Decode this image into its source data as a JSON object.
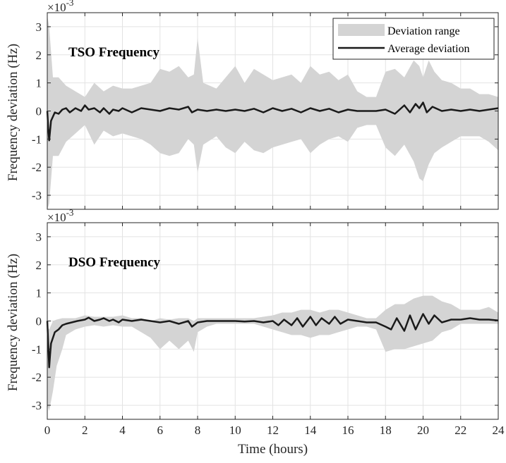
{
  "chart_data": [
    {
      "type": "area",
      "title": "TSO Frequency",
      "xlabel": "",
      "ylabel": "Frequency deviation (Hz)",
      "y_scale_label": "×10",
      "y_scale_exp": "-3",
      "xlim": [
        0,
        24
      ],
      "ylim": [
        -3.5,
        3.5
      ],
      "xticks": [],
      "yticks": [
        "-3",
        "-2",
        "-1",
        "0",
        "1",
        "2",
        "3"
      ],
      "ytick_values": [
        -3,
        -2,
        -1,
        0,
        1,
        2,
        3
      ],
      "xtick_values": [
        0,
        2,
        4,
        6,
        8,
        10,
        12,
        14,
        16,
        18,
        20,
        22,
        24
      ],
      "grid": true,
      "legend_position": "top-right",
      "legend": [
        "Deviation range",
        "Average deviation"
      ],
      "range_color": "#d4d4d4",
      "line_color": "#1a1a1a",
      "series": [
        {
          "name": "Deviation range",
          "x": [
            0,
            0.1,
            0.3,
            0.6,
            1.0,
            1.5,
            2.0,
            2.5,
            3.0,
            3.5,
            4.0,
            4.5,
            5.0,
            5.5,
            6.0,
            6.5,
            7.0,
            7.5,
            7.8,
            8.0,
            8.3,
            9.0,
            9.5,
            10.0,
            10.5,
            11.0,
            11.5,
            12.0,
            12.5,
            13.0,
            13.5,
            14.0,
            14.5,
            15.0,
            15.5,
            16.0,
            16.5,
            17.0,
            17.5,
            18.0,
            18.5,
            19.0,
            19.5,
            19.8,
            20.0,
            20.3,
            20.6,
            21.0,
            21.5,
            22.0,
            22.5,
            23.0,
            23.5,
            24.0
          ],
          "upper": [
            3.4,
            3.0,
            1.2,
            1.2,
            0.9,
            0.7,
            0.5,
            1.0,
            0.7,
            0.9,
            0.8,
            0.8,
            0.9,
            1.0,
            1.5,
            1.4,
            1.6,
            1.2,
            1.3,
            2.6,
            1.0,
            0.8,
            1.2,
            1.6,
            1.0,
            1.5,
            1.3,
            1.1,
            1.2,
            1.3,
            1.0,
            1.6,
            1.3,
            1.4,
            1.1,
            1.3,
            0.7,
            0.5,
            0.5,
            1.4,
            1.5,
            1.2,
            1.8,
            1.6,
            1.2,
            1.8,
            1.4,
            1.1,
            1.0,
            0.8,
            0.8,
            0.6,
            0.6,
            0.5
          ],
          "lower": [
            -3.5,
            -3.3,
            -1.6,
            -1.6,
            -1.1,
            -0.8,
            -0.5,
            -1.2,
            -0.7,
            -0.9,
            -0.8,
            -0.9,
            -1.0,
            -1.2,
            -1.5,
            -1.6,
            -1.5,
            -1.0,
            -1.2,
            -2.2,
            -1.2,
            -0.9,
            -1.3,
            -1.5,
            -1.1,
            -1.4,
            -1.5,
            -1.3,
            -1.2,
            -1.1,
            -1.0,
            -1.5,
            -1.2,
            -1.0,
            -0.9,
            -1.1,
            -0.6,
            -0.5,
            -0.5,
            -1.3,
            -1.6,
            -1.2,
            -1.8,
            -2.4,
            -2.5,
            -1.9,
            -1.5,
            -1.3,
            -1.1,
            -0.9,
            -0.9,
            -0.9,
            -1.1,
            -1.4
          ]
        },
        {
          "name": "Average deviation",
          "x": [
            0,
            0.05,
            0.1,
            0.15,
            0.2,
            0.3,
            0.4,
            0.6,
            0.8,
            1.0,
            1.2,
            1.5,
            1.8,
            2.0,
            2.2,
            2.5,
            2.8,
            3.0,
            3.3,
            3.5,
            3.8,
            4.0,
            4.5,
            5.0,
            5.5,
            6.0,
            6.5,
            7.0,
            7.5,
            7.7,
            8.0,
            8.5,
            9.0,
            9.5,
            10.0,
            10.5,
            11.0,
            11.5,
            12.0,
            12.5,
            13.0,
            13.5,
            14.0,
            14.5,
            15.0,
            15.5,
            16.0,
            16.5,
            17.0,
            17.5,
            18.0,
            18.5,
            19.0,
            19.3,
            19.6,
            19.8,
            20.0,
            20.2,
            20.5,
            21.0,
            21.5,
            22.0,
            22.5,
            23.0,
            23.5,
            24.0
          ],
          "values": [
            0,
            -0.6,
            -1.05,
            -0.7,
            -0.35,
            -0.2,
            -0.05,
            -0.1,
            0.05,
            0.1,
            -0.05,
            0.1,
            0.0,
            0.2,
            0.05,
            0.1,
            -0.05,
            0.1,
            -0.1,
            0.05,
            0.0,
            0.1,
            -0.05,
            0.1,
            0.05,
            0.0,
            0.1,
            0.05,
            0.15,
            -0.05,
            0.05,
            0.0,
            0.05,
            0.0,
            0.05,
            0.0,
            0.08,
            -0.05,
            0.1,
            0.0,
            0.08,
            -0.05,
            0.1,
            0.0,
            0.08,
            -0.05,
            0.05,
            0.0,
            0.0,
            0.0,
            0.05,
            -0.1,
            0.2,
            -0.05,
            0.25,
            0.1,
            0.3,
            -0.05,
            0.15,
            0.0,
            0.05,
            0.0,
            0.05,
            0.0,
            0.05,
            0.1
          ]
        }
      ]
    },
    {
      "type": "area",
      "title": "DSO Frequency",
      "xlabel": "Time (hours)",
      "ylabel": "Frequency deviation (Hz)",
      "y_scale_label": "×10",
      "y_scale_exp": "-3",
      "xlim": [
        0,
        24
      ],
      "ylim": [
        -3.5,
        3.5
      ],
      "xticks": [
        "0",
        "2",
        "4",
        "6",
        "8",
        "10",
        "12",
        "14",
        "16",
        "18",
        "20",
        "22",
        "24"
      ],
      "yticks": [
        "-3",
        "-2",
        "-1",
        "0",
        "1",
        "2",
        "3"
      ],
      "ytick_values": [
        -3,
        -2,
        -1,
        0,
        1,
        2,
        3
      ],
      "xtick_values": [
        0,
        2,
        4,
        6,
        8,
        10,
        12,
        14,
        16,
        18,
        20,
        22,
        24
      ],
      "grid": true,
      "range_color": "#d4d4d4",
      "line_color": "#1a1a1a",
      "series": [
        {
          "name": "Deviation range",
          "x": [
            0,
            0.1,
            0.3,
            0.5,
            0.8,
            1.0,
            1.5,
            2.0,
            2.5,
            3.0,
            3.5,
            4.0,
            4.5,
            5.0,
            5.5,
            6.0,
            6.5,
            7.0,
            7.5,
            7.8,
            8.0,
            8.5,
            9.0,
            10.0,
            11.0,
            12.0,
            12.5,
            13.0,
            13.5,
            14.0,
            14.5,
            15.0,
            15.5,
            16.0,
            16.5,
            17.0,
            17.5,
            18.0,
            18.5,
            19.0,
            19.5,
            20.0,
            20.5,
            21.0,
            21.5,
            22.0,
            22.5,
            23.0,
            23.5,
            24.0
          ],
          "upper": [
            -0.2,
            -0.3,
            0.0,
            0.05,
            0.1,
            0.1,
            0.1,
            0.2,
            0.15,
            0.15,
            0.15,
            0.2,
            0.1,
            0.1,
            0.0,
            0.1,
            0.05,
            0.1,
            0.1,
            0.0,
            0.1,
            0.1,
            0.1,
            0.1,
            0.1,
            0.2,
            0.3,
            0.3,
            0.4,
            0.4,
            0.3,
            0.4,
            0.4,
            0.3,
            0.2,
            0.1,
            0.1,
            0.4,
            0.6,
            0.6,
            0.8,
            0.9,
            0.9,
            0.7,
            0.6,
            0.4,
            0.4,
            0.4,
            0.5,
            0.3
          ],
          "lower": [
            -3.0,
            -3.2,
            -2.5,
            -1.6,
            -1.0,
            -0.5,
            -0.3,
            -0.2,
            -0.15,
            -0.2,
            -0.15,
            -0.2,
            -0.2,
            -0.4,
            -0.6,
            -1.0,
            -0.7,
            -1.0,
            -0.7,
            -1.1,
            -0.4,
            -0.2,
            -0.1,
            -0.1,
            -0.1,
            -0.3,
            -0.4,
            -0.5,
            -0.5,
            -0.6,
            -0.5,
            -0.5,
            -0.4,
            -0.3,
            -0.2,
            -0.2,
            -0.3,
            -1.1,
            -1.0,
            -1.0,
            -0.9,
            -0.8,
            -0.7,
            -0.4,
            -0.3,
            -0.1,
            -0.1,
            -0.1,
            -0.1,
            -0.1
          ]
        },
        {
          "name": "Average deviation",
          "x": [
            0,
            0.05,
            0.1,
            0.15,
            0.2,
            0.3,
            0.4,
            0.6,
            0.8,
            1.0,
            1.3,
            1.6,
            2.0,
            2.2,
            2.5,
            2.8,
            3.0,
            3.3,
            3.5,
            3.8,
            4.0,
            4.5,
            5.0,
            5.5,
            6.0,
            6.5,
            7.0,
            7.5,
            7.7,
            8.0,
            8.5,
            9.0,
            9.5,
            10.0,
            10.5,
            11.0,
            11.5,
            12.0,
            12.3,
            12.6,
            13.0,
            13.3,
            13.6,
            14.0,
            14.3,
            14.6,
            15.0,
            15.3,
            15.6,
            16.0,
            16.5,
            17.0,
            17.5,
            18.0,
            18.3,
            18.6,
            19.0,
            19.3,
            19.6,
            20.0,
            20.3,
            20.6,
            21.0,
            21.5,
            22.0,
            22.5,
            23.0,
            23.5,
            24.0
          ],
          "values": [
            0,
            -0.8,
            -1.65,
            -1.2,
            -0.8,
            -0.6,
            -0.4,
            -0.3,
            -0.15,
            -0.1,
            -0.05,
            0.0,
            0.05,
            0.12,
            0.0,
            0.05,
            0.1,
            0.0,
            0.05,
            -0.05,
            0.05,
            0.0,
            0.05,
            0.0,
            -0.05,
            0.0,
            -0.1,
            0.0,
            -0.2,
            -0.05,
            0.0,
            0.0,
            0.0,
            0.0,
            -0.02,
            0.0,
            -0.05,
            0.0,
            -0.15,
            0.05,
            -0.15,
            0.1,
            -0.2,
            0.15,
            -0.15,
            0.1,
            -0.1,
            0.15,
            -0.1,
            0.05,
            0.0,
            -0.05,
            -0.05,
            -0.2,
            -0.3,
            0.1,
            -0.35,
            0.2,
            -0.3,
            0.25,
            -0.1,
            0.2,
            -0.05,
            0.05,
            0.05,
            0.1,
            0.05,
            0.05,
            0.02
          ]
        }
      ]
    }
  ]
}
